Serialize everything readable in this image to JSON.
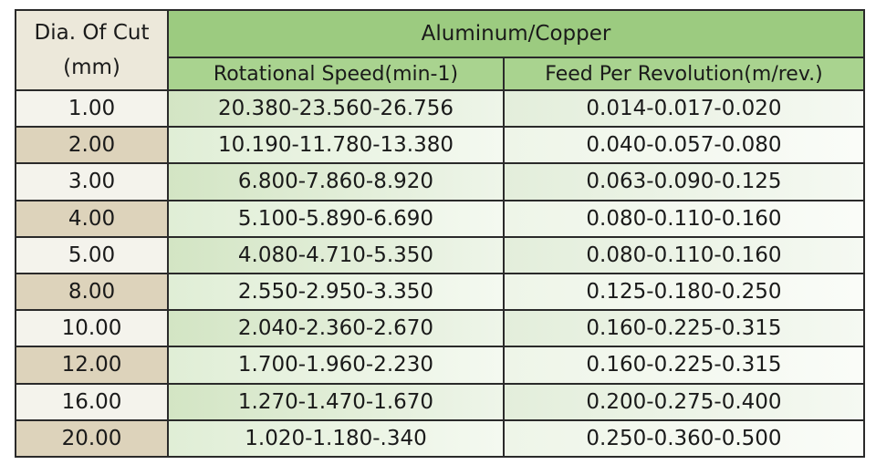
{
  "table": {
    "header": {
      "diameter": [
        "Dia. Of Cut",
        "(mm)"
      ],
      "group": "Aluminum/Copper",
      "columns": [
        "Rotational Speed(min-1)",
        "Feed Per Revolution(m/rev.)"
      ]
    },
    "rows": [
      [
        "1.00",
        "20.380-23.560-26.756",
        "0.014-0.017-0.020"
      ],
      [
        "2.00",
        "10.190-11.780-13.380",
        "0.040-0.057-0.080"
      ],
      [
        "3.00",
        "6.800-7.860-8.920",
        "0.063-0.090-0.125"
      ],
      [
        "4.00",
        "5.100-5.890-6.690",
        "0.080-0.110-0.160"
      ],
      [
        "5.00",
        "4.080-4.710-5.350",
        "0.080-0.110-0.160"
      ],
      [
        "8.00",
        "2.550-2.950-3.350",
        "0.125-0.180-0.250"
      ],
      [
        "10.00",
        "2.040-2.360-2.670",
        "0.160-0.225-0.315"
      ],
      [
        "12.00",
        "1.700-1.960-2.230",
        "0.160-0.225-0.315"
      ],
      [
        "16.00",
        "1.270-1.470-1.670",
        "0.200-0.275-0.400"
      ],
      [
        "20.00",
        "1.020-1.180-.340",
        "0.250-0.360-0.500"
      ]
    ]
  }
}
